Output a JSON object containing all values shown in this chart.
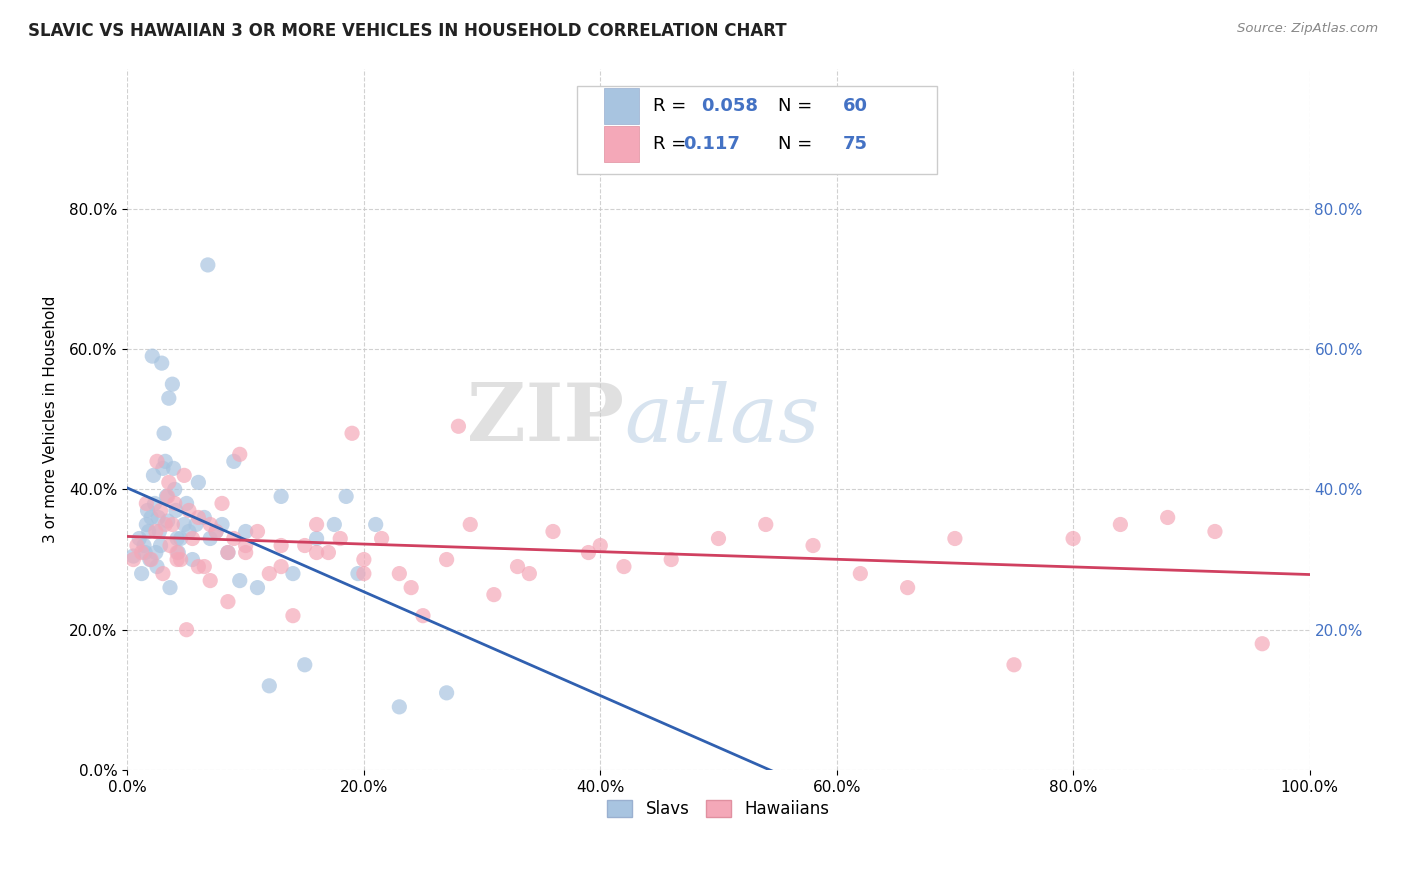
{
  "title": "SLAVIC VS HAWAIIAN 3 OR MORE VEHICLES IN HOUSEHOLD CORRELATION CHART",
  "source": "Source: ZipAtlas.com",
  "ylabel": "3 or more Vehicles in Household",
  "xlim": [
    0,
    1.0
  ],
  "ylim": [
    0,
    1.0
  ],
  "xticks": [
    0.0,
    0.2,
    0.4,
    0.6,
    0.8,
    1.0
  ],
  "xticklabels": [
    "0.0%",
    "20.0%",
    "40.0%",
    "60.0%",
    "80.0%",
    "100.0%"
  ],
  "yticks": [
    0.0,
    0.2,
    0.4,
    0.6,
    0.8
  ],
  "yticklabels": [
    "0.0%",
    "20.0%",
    "40.0%",
    "60.0%",
    "80.0%"
  ],
  "right_yticks": [
    0.2,
    0.4,
    0.6,
    0.8
  ],
  "right_yticklabels": [
    "20.0%",
    "40.0%",
    "60.0%",
    "80.0%"
  ],
  "slavs_color": "#a8c4e0",
  "hawaiians_color": "#f4a8b8",
  "slavs_line_color": "#3060b0",
  "hawaiians_line_color": "#d04060",
  "grid_color": "#cccccc",
  "background_color": "#ffffff",
  "watermark_zip": "ZIP",
  "watermark_atlas": "atlas",
  "legend_r_slavs": "0.058",
  "legend_n_slavs": "60",
  "legend_r_hawaiians": "0.117",
  "legend_n_hawaiians": "75",
  "slavs_x": [
    0.005,
    0.01,
    0.012,
    0.014,
    0.015,
    0.016,
    0.017,
    0.018,
    0.019,
    0.02,
    0.021,
    0.022,
    0.023,
    0.024,
    0.025,
    0.026,
    0.027,
    0.028,
    0.029,
    0.03,
    0.031,
    0.032,
    0.033,
    0.034,
    0.035,
    0.036,
    0.038,
    0.039,
    0.04,
    0.041,
    0.042,
    0.043,
    0.045,
    0.048,
    0.05,
    0.052,
    0.055,
    0.058,
    0.06,
    0.065,
    0.068,
    0.07,
    0.075,
    0.08,
    0.085,
    0.09,
    0.095,
    0.1,
    0.11,
    0.12,
    0.13,
    0.14,
    0.15,
    0.16,
    0.175,
    0.185,
    0.195,
    0.21,
    0.23,
    0.27
  ],
  "slavs_y": [
    0.305,
    0.33,
    0.28,
    0.32,
    0.31,
    0.35,
    0.37,
    0.34,
    0.3,
    0.36,
    0.59,
    0.42,
    0.38,
    0.31,
    0.29,
    0.36,
    0.34,
    0.32,
    0.58,
    0.43,
    0.48,
    0.44,
    0.39,
    0.355,
    0.53,
    0.26,
    0.55,
    0.43,
    0.4,
    0.37,
    0.33,
    0.31,
    0.33,
    0.35,
    0.38,
    0.34,
    0.3,
    0.35,
    0.41,
    0.36,
    0.72,
    0.33,
    0.34,
    0.35,
    0.31,
    0.44,
    0.27,
    0.34,
    0.26,
    0.12,
    0.39,
    0.28,
    0.15,
    0.33,
    0.35,
    0.39,
    0.28,
    0.35,
    0.09,
    0.11
  ],
  "hawaiians_x": [
    0.005,
    0.008,
    0.012,
    0.016,
    0.02,
    0.024,
    0.028,
    0.03,
    0.032,
    0.034,
    0.036,
    0.038,
    0.04,
    0.042,
    0.045,
    0.048,
    0.052,
    0.055,
    0.06,
    0.065,
    0.07,
    0.075,
    0.08,
    0.085,
    0.09,
    0.095,
    0.1,
    0.11,
    0.12,
    0.13,
    0.14,
    0.15,
    0.16,
    0.17,
    0.18,
    0.19,
    0.2,
    0.215,
    0.23,
    0.25,
    0.27,
    0.29,
    0.31,
    0.33,
    0.36,
    0.39,
    0.42,
    0.46,
    0.5,
    0.54,
    0.58,
    0.62,
    0.66,
    0.7,
    0.75,
    0.8,
    0.84,
    0.88,
    0.92,
    0.96,
    0.025,
    0.035,
    0.042,
    0.05,
    0.06,
    0.07,
    0.085,
    0.1,
    0.13,
    0.16,
    0.2,
    0.24,
    0.28,
    0.34,
    0.4
  ],
  "hawaiians_y": [
    0.3,
    0.32,
    0.31,
    0.38,
    0.3,
    0.34,
    0.37,
    0.28,
    0.35,
    0.39,
    0.32,
    0.35,
    0.38,
    0.31,
    0.3,
    0.42,
    0.37,
    0.33,
    0.36,
    0.29,
    0.35,
    0.34,
    0.38,
    0.31,
    0.33,
    0.45,
    0.32,
    0.34,
    0.28,
    0.29,
    0.22,
    0.32,
    0.35,
    0.31,
    0.33,
    0.48,
    0.3,
    0.33,
    0.28,
    0.22,
    0.3,
    0.35,
    0.25,
    0.29,
    0.34,
    0.31,
    0.29,
    0.3,
    0.33,
    0.35,
    0.32,
    0.28,
    0.26,
    0.33,
    0.15,
    0.33,
    0.35,
    0.36,
    0.34,
    0.18,
    0.44,
    0.41,
    0.3,
    0.2,
    0.29,
    0.27,
    0.24,
    0.31,
    0.32,
    0.31,
    0.28,
    0.26,
    0.49,
    0.28,
    0.32
  ]
}
